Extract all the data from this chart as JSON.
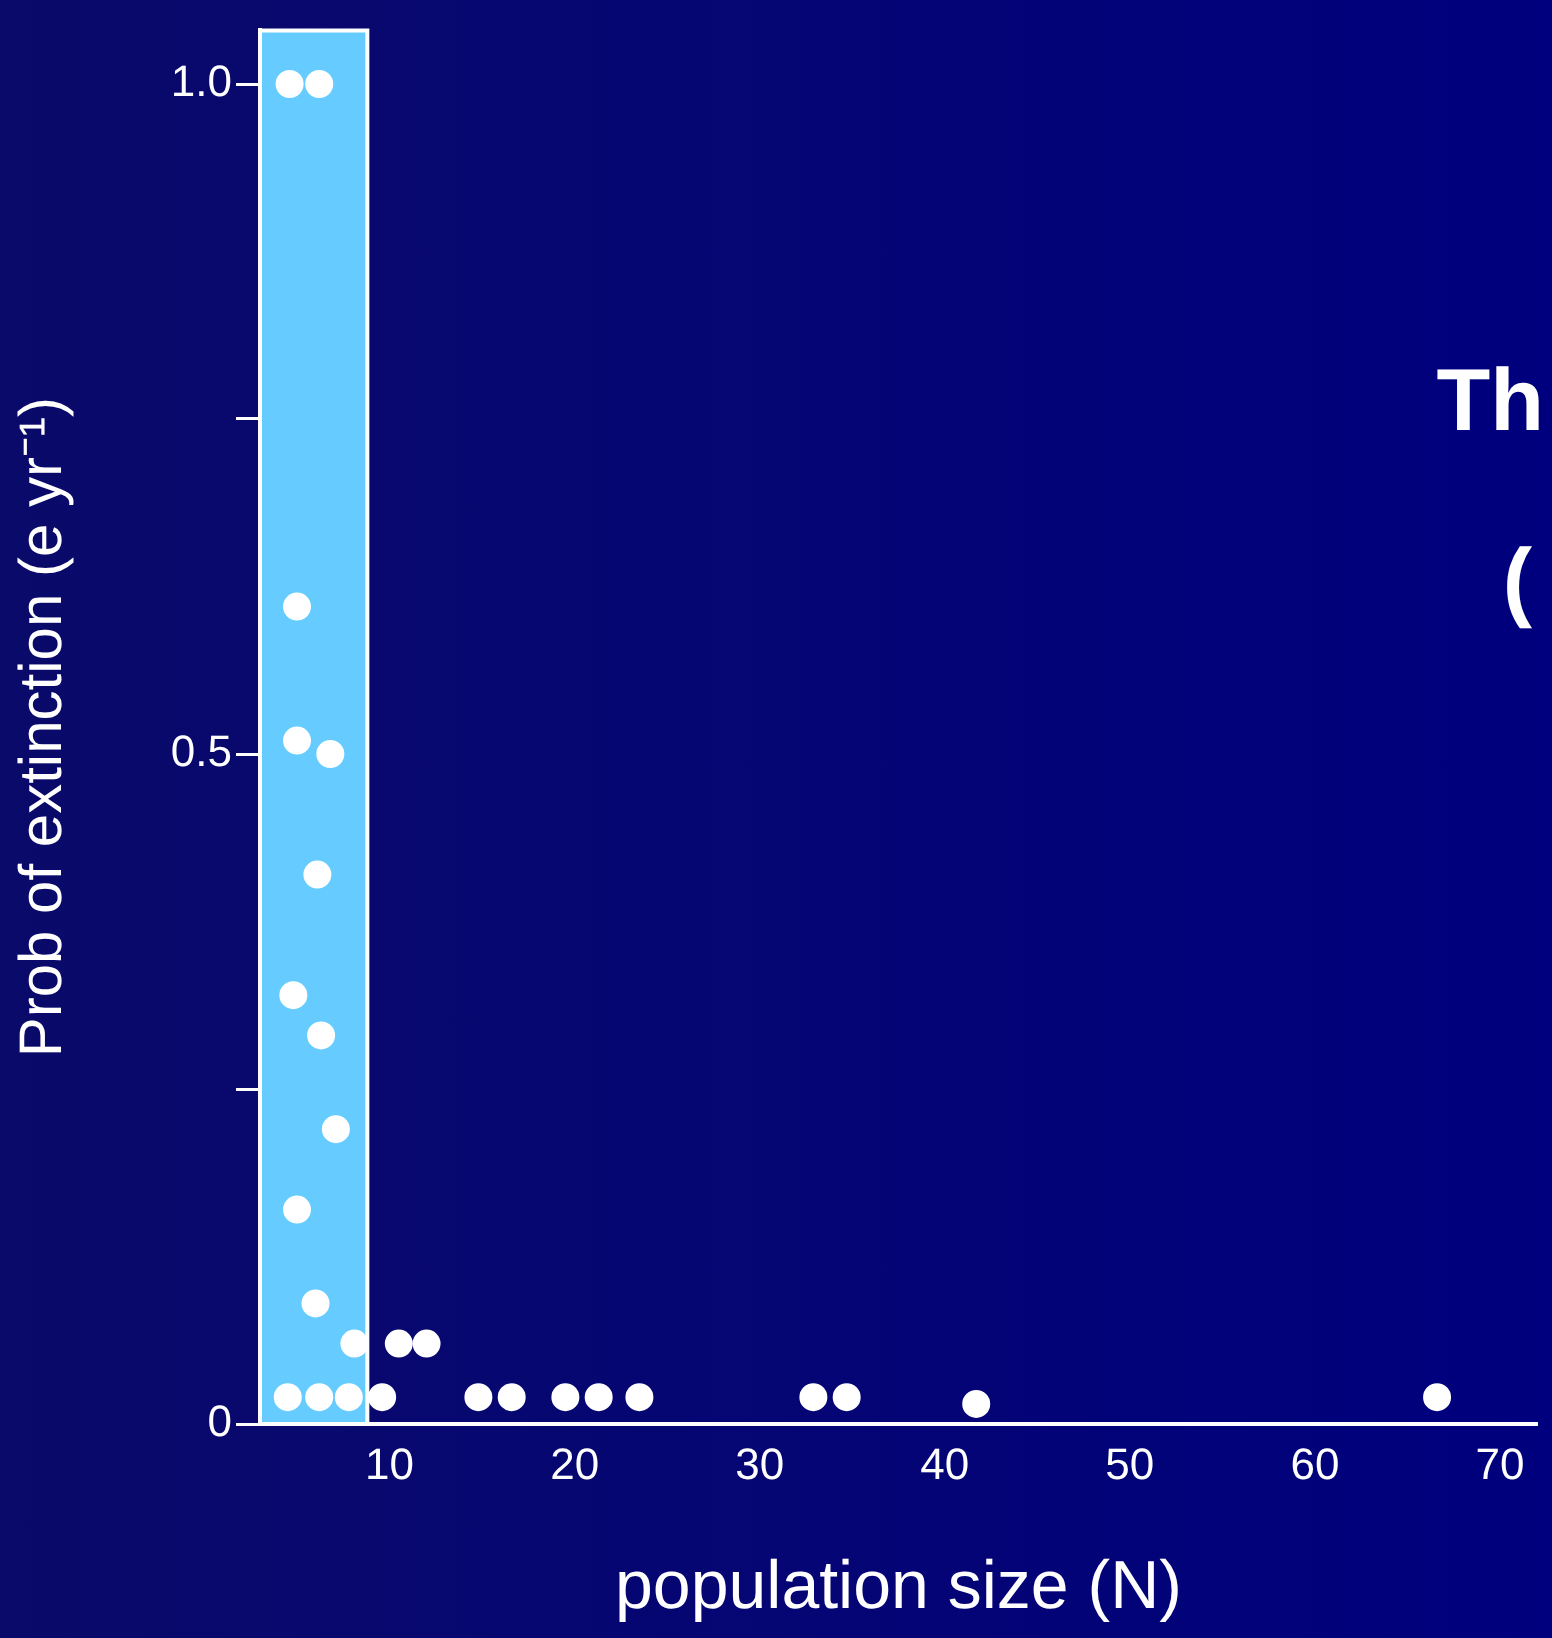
{
  "chart_data": {
    "type": "scatter",
    "xlabel": "population size (N)",
    "ylabel": "Prob of extinction (e yr⁻¹)",
    "annotations": [
      "Th",
      "("
    ],
    "x": [
      4.6,
      6.2,
      5.0,
      5.0,
      6.8,
      6.1,
      4.8,
      6.3,
      7.1,
      5.0,
      6.0,
      8.1,
      10.5,
      12.0,
      4.5,
      6.2,
      7.8,
      9.6,
      14.8,
      16.6,
      19.5,
      21.3,
      23.5,
      32.9,
      34.7,
      41.7,
      66.6
    ],
    "series": [
      {
        "color": "#ffffff",
        "values": [
          1.0,
          1.0,
          0.61,
          0.51,
          0.5,
          0.41,
          0.32,
          0.29,
          0.22,
          0.16,
          0.09,
          0.06,
          0.06,
          0.06,
          0.02,
          0.02,
          0.02,
          0.02,
          0.02,
          0.02,
          0.02,
          0.02,
          0.02,
          0.02,
          0.02,
          0.015,
          0.02
        ]
      }
    ],
    "xlim": [
      3,
      72
    ],
    "xticks": [
      10,
      20,
      30,
      40,
      50,
      60,
      70
    ],
    "ylim": [
      0,
      1.04
    ],
    "yticks": [
      {
        "value": 0,
        "label": "0"
      },
      {
        "value": 0.25,
        "label": null
      },
      {
        "value": 0.5,
        "label": "0.5"
      },
      {
        "value": 0.75,
        "label": null
      },
      {
        "value": 1,
        "label": "1.0"
      }
    ],
    "bands": [
      {
        "axis": "x",
        "from": 3,
        "to": 8.8,
        "color": "#66ccff"
      }
    ],
    "grid": false,
    "legend": false,
    "marker": "circle"
  }
}
